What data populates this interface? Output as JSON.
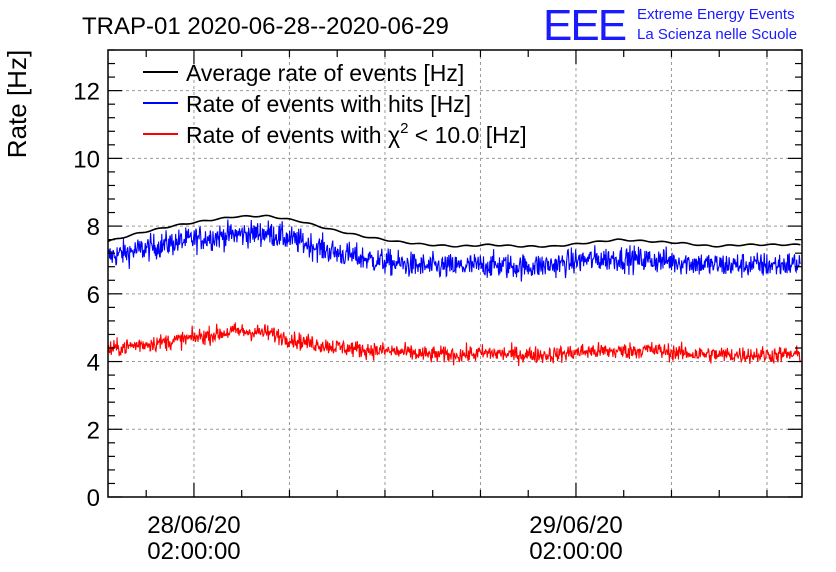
{
  "header": {
    "title": "TRAP-01 2020-06-28--2020-06-29",
    "logo_text": "EEE",
    "org_line1": "Extreme Energy Events",
    "org_line2": "La Scienza nelle Scuole"
  },
  "chart_data": {
    "type": "line",
    "ylabel": "Rate [Hz]",
    "ylim": [
      0,
      13.2
    ],
    "xlim": [
      0,
      43.6
    ],
    "grid": true,
    "legend_position": "top-left",
    "y_ticks": [
      0,
      2,
      4,
      6,
      8,
      10,
      12
    ],
    "y_tick_labels": [
      "0",
      "2",
      "4",
      "6",
      "8",
      "10",
      "12"
    ],
    "x_ticks": [
      {
        "x": 5.4,
        "label_date": "28/06/20",
        "label_time": "02:00:00"
      },
      {
        "x": 29.4,
        "label_date": "29/06/20",
        "label_time": "02:00:00"
      }
    ],
    "x_minor_ticks": [
      -0.6,
      2.4,
      5.4,
      8.4,
      11.4,
      14.4,
      17.4,
      20.4,
      23.4,
      26.4,
      29.4,
      32.4,
      35.4,
      38.4,
      41.4
    ],
    "x_grid": [
      5.4,
      11.4,
      17.4,
      23.4,
      29.4,
      35.4,
      41.4
    ],
    "series": [
      {
        "name": "Average rate of events [Hz]",
        "color": "#000000",
        "kind": "smooth",
        "x": [
          0,
          2,
          4,
          6,
          8,
          10,
          12,
          14,
          16,
          18,
          20,
          22,
          24,
          26,
          28,
          30,
          32,
          34,
          36,
          38,
          40,
          42,
          43.5
        ],
        "y": [
          7.55,
          7.8,
          8.0,
          8.15,
          8.28,
          8.3,
          8.15,
          7.9,
          7.7,
          7.55,
          7.45,
          7.4,
          7.45,
          7.4,
          7.4,
          7.5,
          7.6,
          7.55,
          7.5,
          7.4,
          7.45,
          7.45,
          7.45
        ]
      },
      {
        "name": "Rate of events with hits [Hz]",
        "color": "#0000ff",
        "kind": "noisy",
        "x": [
          0,
          2,
          4,
          6,
          8,
          10,
          12,
          14,
          16,
          18,
          20,
          22,
          24,
          26,
          28,
          30,
          32,
          34,
          36,
          38,
          40,
          42,
          43.5
        ],
        "y": [
          7.1,
          7.3,
          7.5,
          7.65,
          7.75,
          7.8,
          7.55,
          7.25,
          7.05,
          6.9,
          6.8,
          6.8,
          6.85,
          6.8,
          6.85,
          7.0,
          7.05,
          7.0,
          6.95,
          6.85,
          6.85,
          6.85,
          6.9
        ],
        "noise_amplitude": 0.5
      },
      {
        "name": "Rate of events with χ² < 10.0 [Hz]",
        "color": "#ff0000",
        "kind": "noisy",
        "x": [
          0,
          2,
          4,
          6,
          8,
          10,
          12,
          14,
          16,
          18,
          20,
          22,
          24,
          26,
          28,
          30,
          32,
          34,
          36,
          38,
          40,
          42,
          43.5
        ],
        "y": [
          4.35,
          4.5,
          4.6,
          4.75,
          4.9,
          4.85,
          4.6,
          4.45,
          4.35,
          4.3,
          4.2,
          4.2,
          4.25,
          4.2,
          4.2,
          4.3,
          4.3,
          4.35,
          4.25,
          4.2,
          4.2,
          4.2,
          4.2
        ],
        "noise_amplitude": 0.33
      }
    ],
    "legend": {
      "entry1": "Average rate of events [Hz]",
      "entry2": "Rate of events with hits [Hz]",
      "entry3_prefix": "Rate of events with χ",
      "entry3_sup": "2",
      "entry3_suffix": " < 10.0 [Hz]"
    }
  }
}
